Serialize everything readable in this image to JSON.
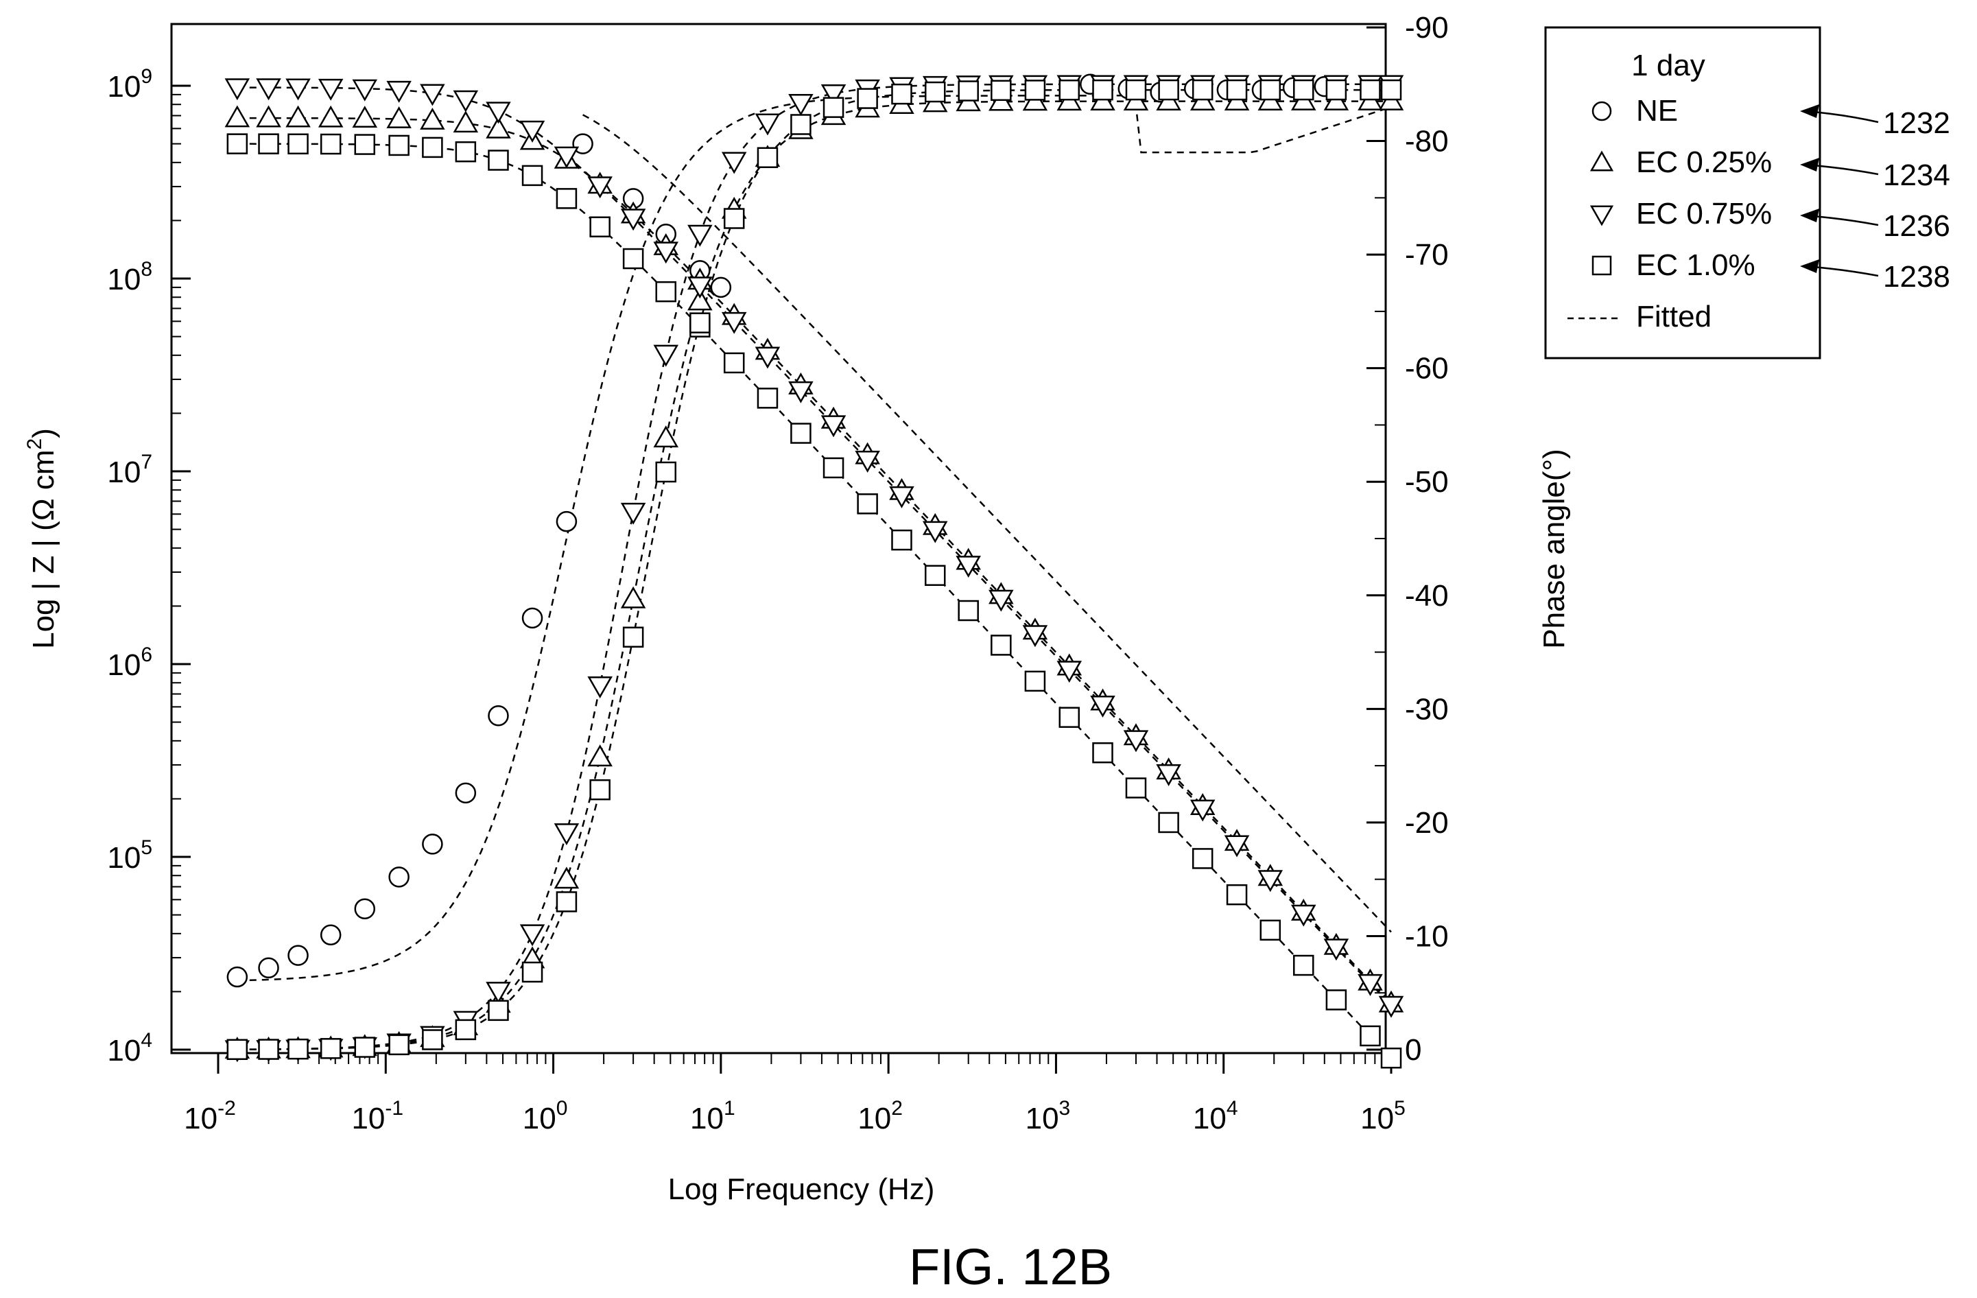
{
  "figure": {
    "caption": "FIG. 12B"
  },
  "chart_data": {
    "type": "scatter",
    "title": "",
    "xlabel": "Log Frequency (Hz)",
    "ylabel": "Log | Z | (Ω cm",
    "ylabel_superscript": "2",
    "ylabel_close": ")",
    "y2label": "Phase angle(°)",
    "x_scale": "log",
    "xlim": [
      0.01,
      100000
    ],
    "y_scale": "log",
    "ylim": [
      10000,
      1000000000
    ],
    "y2lim": [
      0,
      -90
    ],
    "x_ticks": [
      {
        "base": "10",
        "exp": "-2"
      },
      {
        "base": "10",
        "exp": "-1"
      },
      {
        "base": "10",
        "exp": "0"
      },
      {
        "base": "10",
        "exp": "1"
      },
      {
        "base": "10",
        "exp": "2"
      },
      {
        "base": "10",
        "exp": "3"
      },
      {
        "base": "10",
        "exp": "4"
      },
      {
        "base": "10",
        "exp": "5"
      }
    ],
    "y_ticks": [
      {
        "base": "10",
        "exp": "4"
      },
      {
        "base": "10",
        "exp": "5"
      },
      {
        "base": "10",
        "exp": "6"
      },
      {
        "base": "10",
        "exp": "7"
      },
      {
        "base": "10",
        "exp": "8"
      },
      {
        "base": "10",
        "exp": "9"
      }
    ],
    "y2_ticks": [
      "0",
      "-10",
      "-20",
      "-30",
      "-40",
      "-50",
      "-60",
      "-70",
      "-80",
      "-90"
    ],
    "grid": false,
    "legend": {
      "position": "top-right outside plot",
      "title": "1 day",
      "entries": [
        "NE",
        "EC 0.25%",
        "EC 0.75%",
        "EC 1.0%",
        "Fitted"
      ]
    },
    "annotations": [
      "1232",
      "1234",
      "1236",
      "1238"
    ],
    "marker_freqs": [
      0.013,
      0.02,
      0.03,
      0.047,
      0.075,
      0.12,
      0.19,
      0.3,
      0.47,
      0.75,
      1.2,
      1.9,
      3,
      4.7,
      7.5,
      12,
      19,
      30,
      47,
      75,
      120,
      190,
      300,
      470,
      750,
      1200,
      1900,
      3000,
      4700,
      7500,
      12000,
      19000,
      30000,
      47000,
      75000,
      100000
    ],
    "series": [
      {
        "name": "NE",
        "marker": "circle",
        "impedance_model": {
          "R_low_ohm_cm2": 1000000000.0,
          "corner_Hz": 1.5,
          "slope": -0.91,
          "highfreq_points_only": true,
          "high_freq_range_Hz": [
            1.5,
            10
          ]
        },
        "magnitude_points": [
          {
            "x": 1.5,
            "y": 500000000
          },
          {
            "x": 3,
            "y": 260000000
          },
          {
            "x": 4.7,
            "y": 170000000
          },
          {
            "x": 7.5,
            "y": 110000000
          },
          {
            "x": 10,
            "y": 90000000
          }
        ],
        "phase_points": [
          {
            "x": 0.013,
            "y": -6.4
          },
          {
            "x": 0.02,
            "y": -7.2
          },
          {
            "x": 0.03,
            "y": -8.3
          },
          {
            "x": 0.047,
            "y": -10.1
          },
          {
            "x": 0.075,
            "y": -12.4
          },
          {
            "x": 0.12,
            "y": -15.2
          },
          {
            "x": 0.19,
            "y": -18.1
          },
          {
            "x": 0.3,
            "y": -22.6
          },
          {
            "x": 0.47,
            "y": -29.4
          },
          {
            "x": 0.75,
            "y": -38
          },
          {
            "x": 1.2,
            "y": -46.5
          },
          {
            "x": 1600,
            "y": -85
          },
          {
            "x": 2700,
            "y": -84.6
          },
          {
            "x": 4200,
            "y": -84.3
          },
          {
            "x": 6700,
            "y": -84.6
          },
          {
            "x": 10500,
            "y": -84.5
          },
          {
            "x": 17000,
            "y": -84.5
          },
          {
            "x": 26000,
            "y": -84.7
          },
          {
            "x": 40000,
            "y": -84.8
          }
        ]
      },
      {
        "name": "EC 0.25%",
        "marker": "triangle-up",
        "impedance_model": {
          "R_low_ohm_cm2": 680000000,
          "corner_Hz": 0.9,
          "slope": -0.91
        },
        "phase_model": {
          "max_deg": -83.5,
          "mid_Hz": 3.2,
          "steepness": 1.55
        }
      },
      {
        "name": "EC 0.75%",
        "marker": "triangle-down",
        "impedance_model": {
          "R_low_ohm_cm2": 980000000,
          "corner_Hz": 0.55,
          "slope": -0.905
        },
        "phase_model": {
          "max_deg": -85,
          "mid_Hz": 2.6,
          "steepness": 1.6
        }
      },
      {
        "name": "EC 1.0%",
        "marker": "square",
        "impedance_model": {
          "R_low_ohm_cm2": 500000000,
          "corner_Hz": 0.7,
          "slope": -0.92
        },
        "phase_model": {
          "max_deg": -84.5,
          "mid_Hz": 3.6,
          "steepness": 1.55
        }
      }
    ],
    "fitted_curves_style": "dashed"
  }
}
